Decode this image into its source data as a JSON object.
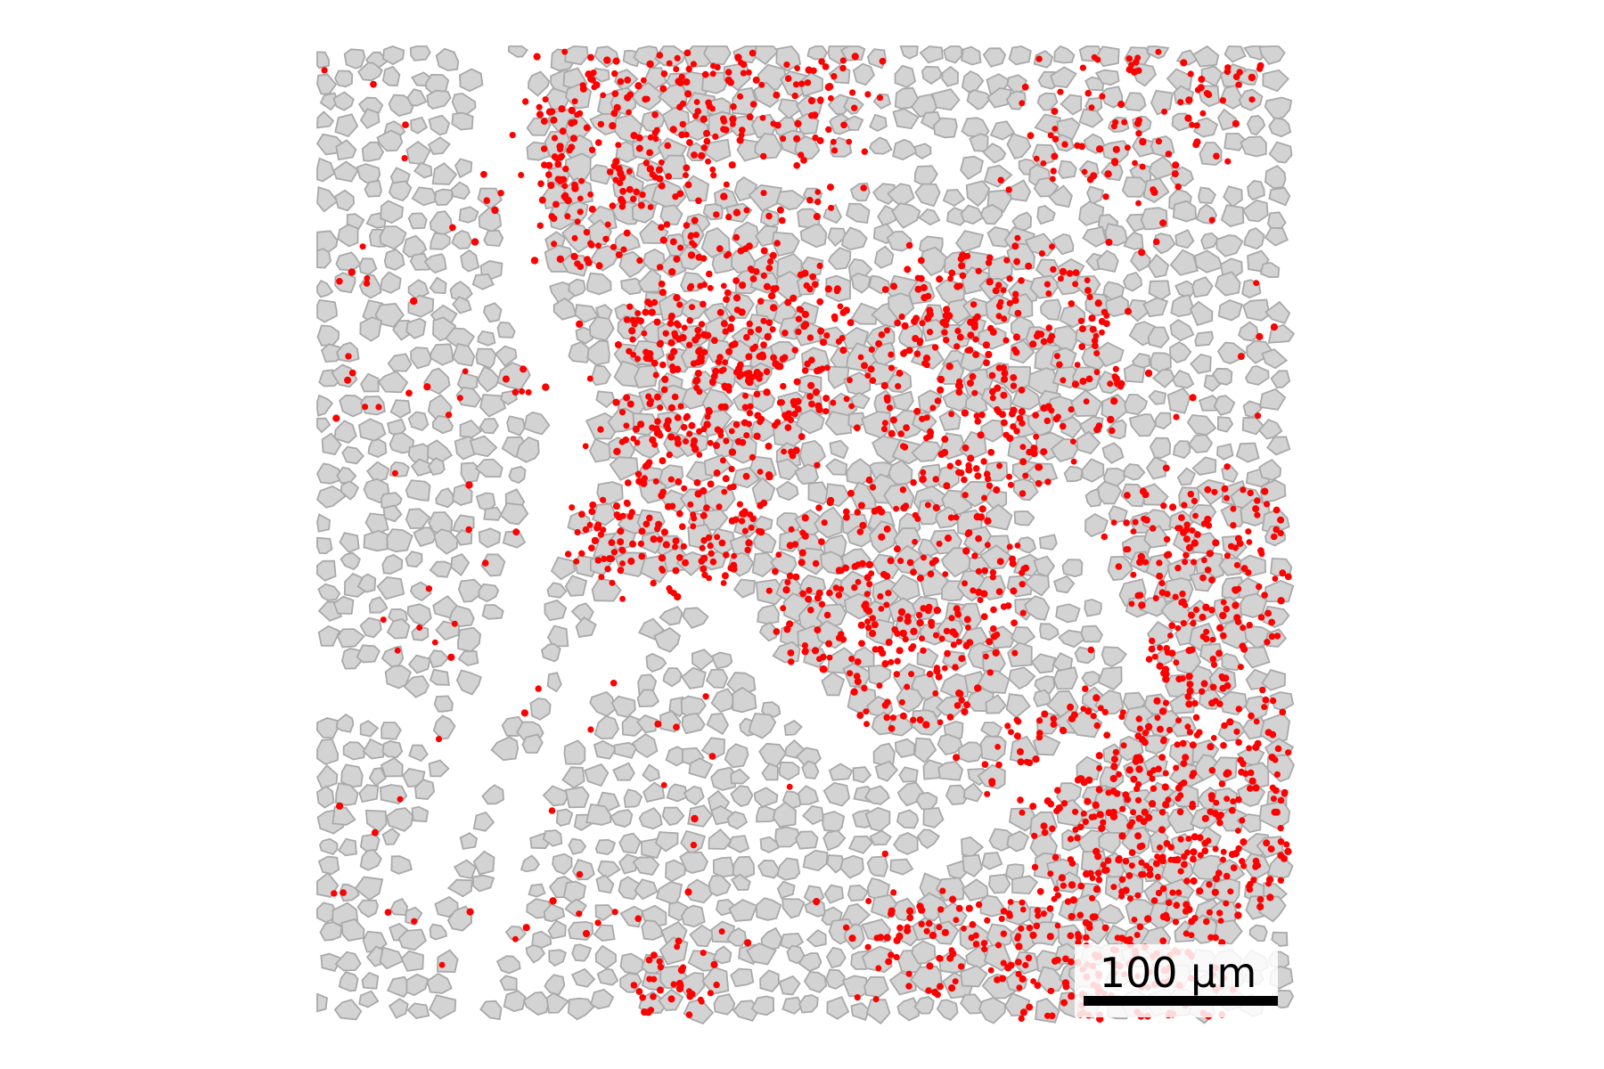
{
  "figure": {
    "panel": "spatial-segmentation-map",
    "background_color": "#ffffff",
    "cell_fill_color": "#d3d3d3",
    "cell_edge_color": "#a9a9a9",
    "transcript_color": "#ff0000"
  },
  "scale_bar": {
    "label": "100 µm",
    "bar_color": "#000000",
    "box_color": "#ffffff"
  }
}
